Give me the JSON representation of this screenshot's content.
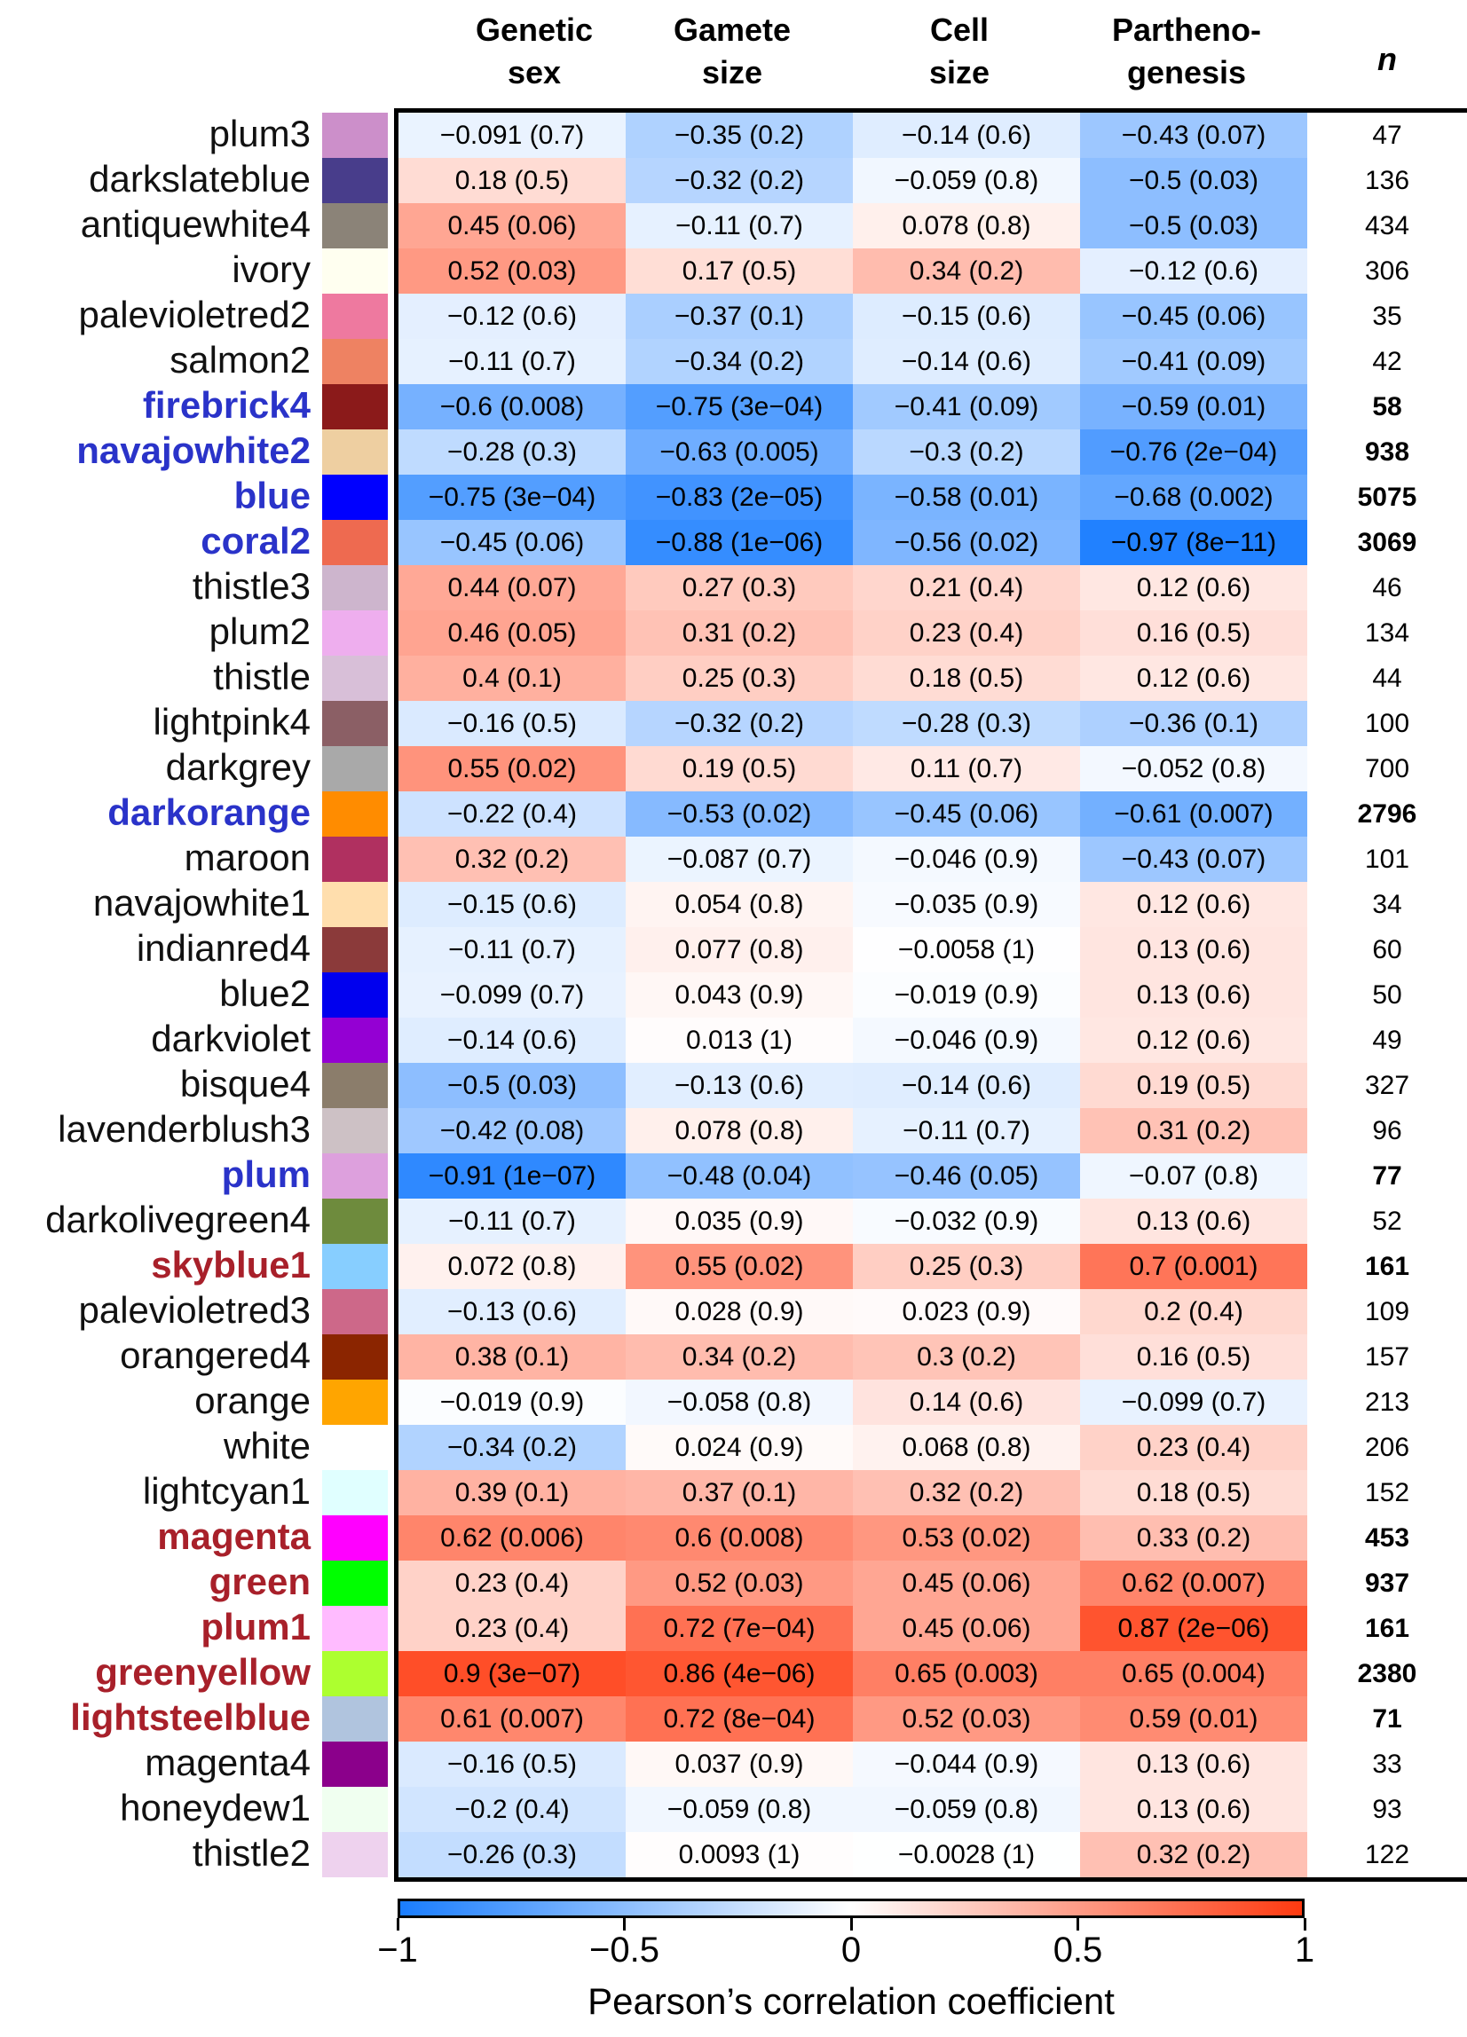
{
  "chart_data": {
    "type": "heatmap",
    "columns": [
      {
        "line1": "Genetic",
        "line2": "sex"
      },
      {
        "line1": "Gamete",
        "line2": "size"
      },
      {
        "line1": "Cell",
        "line2": "size"
      },
      {
        "line1": "Partheno-",
        "line2": "genesis"
      }
    ],
    "n_header": "n",
    "value_range": [
      -1,
      1
    ],
    "colorbar": {
      "title": "Pearson’s correlation coefficient",
      "ticks": [
        -1,
        -0.5,
        0,
        0.5,
        1
      ],
      "tick_labels": [
        "−1",
        "−0.5",
        "0",
        "0.5",
        "1"
      ],
      "low_color": "#1a7dff",
      "mid_color": "#ffffff",
      "high_color": "#ff3a10"
    },
    "label_colors": {
      "black": "#111111",
      "blue": "#2a33c9",
      "red": "#a8202a"
    },
    "rows": [
      {
        "module": "plum3",
        "swatch": "#cc8fca",
        "label_color": "black",
        "n": "47",
        "values": [
          {
            "r": -0.091,
            "t": "−0.091  (0.7)"
          },
          {
            "r": -0.35,
            "t": "−0.35  (0.2)"
          },
          {
            "r": -0.14,
            "t": "−0.14  (0.6)"
          },
          {
            "r": -0.43,
            "t": "−0.43  (0.07)"
          }
        ]
      },
      {
        "module": "darkslateblue",
        "swatch": "#483d8b",
        "label_color": "black",
        "n": "136",
        "values": [
          {
            "r": 0.18,
            "t": "0.18  (0.5)"
          },
          {
            "r": -0.32,
            "t": "−0.32  (0.2)"
          },
          {
            "r": -0.059,
            "t": "−0.059  (0.8)"
          },
          {
            "r": -0.5,
            "t": "−0.5  (0.03)"
          }
        ]
      },
      {
        "module": "antiquewhite4",
        "swatch": "#8b8378",
        "label_color": "black",
        "n": "434",
        "values": [
          {
            "r": 0.45,
            "t": "0.45  (0.06)"
          },
          {
            "r": -0.11,
            "t": "−0.11  (0.7)"
          },
          {
            "r": 0.078,
            "t": "0.078  (0.8)"
          },
          {
            "r": -0.5,
            "t": "−0.5  (0.03)"
          }
        ]
      },
      {
        "module": "ivory",
        "swatch": "#fffff0",
        "label_color": "black",
        "n": "306",
        "values": [
          {
            "r": 0.52,
            "t": "0.52  (0.03)"
          },
          {
            "r": 0.17,
            "t": "0.17  (0.5)"
          },
          {
            "r": 0.34,
            "t": "0.34  (0.2)"
          },
          {
            "r": -0.12,
            "t": "−0.12  (0.6)"
          }
        ]
      },
      {
        "module": "palevioletred2",
        "swatch": "#ee799f",
        "label_color": "black",
        "n": "35",
        "values": [
          {
            "r": -0.12,
            "t": "−0.12  (0.6)"
          },
          {
            "r": -0.37,
            "t": "−0.37  (0.1)"
          },
          {
            "r": -0.15,
            "t": "−0.15  (0.6)"
          },
          {
            "r": -0.45,
            "t": "−0.45  (0.06)"
          }
        ]
      },
      {
        "module": "salmon2",
        "swatch": "#ee8262",
        "label_color": "black",
        "n": "42",
        "values": [
          {
            "r": -0.11,
            "t": "−0.11  (0.7)"
          },
          {
            "r": -0.34,
            "t": "−0.34  (0.2)"
          },
          {
            "r": -0.14,
            "t": "−0.14  (0.6)"
          },
          {
            "r": -0.41,
            "t": "−0.41  (0.09)"
          }
        ]
      },
      {
        "module": "firebrick4",
        "swatch": "#8b1a1a",
        "label_color": "blue",
        "n": "58",
        "values": [
          {
            "r": -0.6,
            "t": "−0.6  (0.008)"
          },
          {
            "r": -0.75,
            "t": "−0.75  (3e−04)"
          },
          {
            "r": -0.41,
            "t": "−0.41  (0.09)"
          },
          {
            "r": -0.59,
            "t": "−0.59  (0.01)"
          }
        ]
      },
      {
        "module": "navajowhite2",
        "swatch": "#eecfa1",
        "label_color": "blue",
        "n": "938",
        "values": [
          {
            "r": -0.28,
            "t": "−0.28  (0.3)"
          },
          {
            "r": -0.63,
            "t": "−0.63  (0.005)"
          },
          {
            "r": -0.3,
            "t": "−0.3  (0.2)"
          },
          {
            "r": -0.76,
            "t": "−0.76  (2e−04)"
          }
        ]
      },
      {
        "module": "blue",
        "swatch": "#0000ff",
        "label_color": "blue",
        "n": "5075",
        "values": [
          {
            "r": -0.75,
            "t": "−0.75  (3e−04)"
          },
          {
            "r": -0.83,
            "t": "−0.83  (2e−05)"
          },
          {
            "r": -0.58,
            "t": "−0.58  (0.01)"
          },
          {
            "r": -0.68,
            "t": "−0.68  (0.002)"
          }
        ]
      },
      {
        "module": "coral2",
        "swatch": "#ee6a50",
        "label_color": "blue",
        "n": "3069",
        "values": [
          {
            "r": -0.45,
            "t": "−0.45  (0.06)"
          },
          {
            "r": -0.88,
            "t": "−0.88  (1e−06)"
          },
          {
            "r": -0.56,
            "t": "−0.56  (0.02)"
          },
          {
            "r": -0.97,
            "t": "−0.97  (8e−11)"
          }
        ]
      },
      {
        "module": "thistle3",
        "swatch": "#cdb5cd",
        "label_color": "black",
        "n": "46",
        "values": [
          {
            "r": 0.44,
            "t": "0.44  (0.07)"
          },
          {
            "r": 0.27,
            "t": "0.27  (0.3)"
          },
          {
            "r": 0.21,
            "t": "0.21  (0.4)"
          },
          {
            "r": 0.12,
            "t": "0.12  (0.6)"
          }
        ]
      },
      {
        "module": "plum2",
        "swatch": "#eeaeee",
        "label_color": "black",
        "n": "134",
        "values": [
          {
            "r": 0.46,
            "t": "0.46  (0.05)"
          },
          {
            "r": 0.31,
            "t": "0.31  (0.2)"
          },
          {
            "r": 0.23,
            "t": "0.23  (0.4)"
          },
          {
            "r": 0.16,
            "t": "0.16  (0.5)"
          }
        ]
      },
      {
        "module": "thistle",
        "swatch": "#d8bfd8",
        "label_color": "black",
        "n": "44",
        "values": [
          {
            "r": 0.4,
            "t": "0.4  (0.1)"
          },
          {
            "r": 0.25,
            "t": "0.25  (0.3)"
          },
          {
            "r": 0.18,
            "t": "0.18  (0.5)"
          },
          {
            "r": 0.12,
            "t": "0.12  (0.6)"
          }
        ]
      },
      {
        "module": "lightpink4",
        "swatch": "#8b5f65",
        "label_color": "black",
        "n": "100",
        "values": [
          {
            "r": -0.16,
            "t": "−0.16  (0.5)"
          },
          {
            "r": -0.32,
            "t": "−0.32  (0.2)"
          },
          {
            "r": -0.28,
            "t": "−0.28  (0.3)"
          },
          {
            "r": -0.36,
            "t": "−0.36  (0.1)"
          }
        ]
      },
      {
        "module": "darkgrey",
        "swatch": "#a9a9a9",
        "label_color": "black",
        "n": "700",
        "values": [
          {
            "r": 0.55,
            "t": "0.55  (0.02)"
          },
          {
            "r": 0.19,
            "t": "0.19  (0.5)"
          },
          {
            "r": 0.11,
            "t": "0.11  (0.7)"
          },
          {
            "r": -0.052,
            "t": "−0.052  (0.8)"
          }
        ]
      },
      {
        "module": "darkorange",
        "swatch": "#ff8c00",
        "label_color": "blue",
        "n": "2796",
        "values": [
          {
            "r": -0.22,
            "t": "−0.22  (0.4)"
          },
          {
            "r": -0.53,
            "t": "−0.53  (0.02)"
          },
          {
            "r": -0.45,
            "t": "−0.45  (0.06)"
          },
          {
            "r": -0.61,
            "t": "−0.61  (0.007)"
          }
        ]
      },
      {
        "module": "maroon",
        "swatch": "#b03060",
        "label_color": "black",
        "n": "101",
        "values": [
          {
            "r": 0.32,
            "t": "0.32  (0.2)"
          },
          {
            "r": -0.087,
            "t": "−0.087  (0.7)"
          },
          {
            "r": -0.046,
            "t": "−0.046  (0.9)"
          },
          {
            "r": -0.43,
            "t": "−0.43  (0.07)"
          }
        ]
      },
      {
        "module": "navajowhite1",
        "swatch": "#ffdead",
        "label_color": "black",
        "n": "34",
        "values": [
          {
            "r": -0.15,
            "t": "−0.15  (0.6)"
          },
          {
            "r": 0.054,
            "t": "0.054  (0.8)"
          },
          {
            "r": -0.035,
            "t": "−0.035  (0.9)"
          },
          {
            "r": 0.12,
            "t": "0.12  (0.6)"
          }
        ]
      },
      {
        "module": "indianred4",
        "swatch": "#8b3a3a",
        "label_color": "black",
        "n": "60",
        "values": [
          {
            "r": -0.11,
            "t": "−0.11  (0.7)"
          },
          {
            "r": 0.077,
            "t": "0.077  (0.8)"
          },
          {
            "r": -0.0058,
            "t": "−0.0058  (1)"
          },
          {
            "r": 0.13,
            "t": "0.13  (0.6)"
          }
        ]
      },
      {
        "module": "blue2",
        "swatch": "#0000ee",
        "label_color": "black",
        "n": "50",
        "values": [
          {
            "r": -0.099,
            "t": "−0.099  (0.7)"
          },
          {
            "r": 0.043,
            "t": "0.043  (0.9)"
          },
          {
            "r": -0.019,
            "t": "−0.019  (0.9)"
          },
          {
            "r": 0.13,
            "t": "0.13  (0.6)"
          }
        ]
      },
      {
        "module": "darkviolet",
        "swatch": "#9400d3",
        "label_color": "black",
        "n": "49",
        "values": [
          {
            "r": -0.14,
            "t": "−0.14  (0.6)"
          },
          {
            "r": 0.013,
            "t": "0.013  (1)"
          },
          {
            "r": -0.046,
            "t": "−0.046  (0.9)"
          },
          {
            "r": 0.12,
            "t": "0.12  (0.6)"
          }
        ]
      },
      {
        "module": "bisque4",
        "swatch": "#8b7d6b",
        "label_color": "black",
        "n": "327",
        "values": [
          {
            "r": -0.5,
            "t": "−0.5  (0.03)"
          },
          {
            "r": -0.13,
            "t": "−0.13  (0.6)"
          },
          {
            "r": -0.14,
            "t": "−0.14  (0.6)"
          },
          {
            "r": 0.19,
            "t": "0.19  (0.5)"
          }
        ]
      },
      {
        "module": "lavenderblush3",
        "swatch": "#cdc1c5",
        "label_color": "black",
        "n": "96",
        "values": [
          {
            "r": -0.42,
            "t": "−0.42  (0.08)"
          },
          {
            "r": 0.078,
            "t": "0.078  (0.8)"
          },
          {
            "r": -0.11,
            "t": "−0.11  (0.7)"
          },
          {
            "r": 0.31,
            "t": "0.31  (0.2)"
          }
        ]
      },
      {
        "module": "plum",
        "swatch": "#dda0dd",
        "label_color": "blue",
        "n": "77",
        "values": [
          {
            "r": -0.91,
            "t": "−0.91  (1e−07)"
          },
          {
            "r": -0.48,
            "t": "−0.48  (0.04)"
          },
          {
            "r": -0.46,
            "t": "−0.46  (0.05)"
          },
          {
            "r": -0.07,
            "t": "−0.07  (0.8)"
          }
        ]
      },
      {
        "module": "darkolivegreen4",
        "swatch": "#6e8b3d",
        "label_color": "black",
        "n": "52",
        "values": [
          {
            "r": -0.11,
            "t": "−0.11  (0.7)"
          },
          {
            "r": 0.035,
            "t": "0.035  (0.9)"
          },
          {
            "r": -0.032,
            "t": "−0.032  (0.9)"
          },
          {
            "r": 0.13,
            "t": "0.13  (0.6)"
          }
        ]
      },
      {
        "module": "skyblue1",
        "swatch": "#87ceff",
        "label_color": "red",
        "n": "161",
        "values": [
          {
            "r": 0.072,
            "t": "0.072  (0.8)"
          },
          {
            "r": 0.55,
            "t": "0.55  (0.02)"
          },
          {
            "r": 0.25,
            "t": "0.25  (0.3)"
          },
          {
            "r": 0.7,
            "t": "0.7  (0.001)"
          }
        ]
      },
      {
        "module": "palevioletred3",
        "swatch": "#cd6889",
        "label_color": "black",
        "n": "109",
        "values": [
          {
            "r": -0.13,
            "t": "−0.13  (0.6)"
          },
          {
            "r": 0.028,
            "t": "0.028  (0.9)"
          },
          {
            "r": 0.023,
            "t": "0.023  (0.9)"
          },
          {
            "r": 0.2,
            "t": "0.2  (0.4)"
          }
        ]
      },
      {
        "module": "orangered4",
        "swatch": "#8b2500",
        "label_color": "black",
        "n": "157",
        "values": [
          {
            "r": 0.38,
            "t": "0.38  (0.1)"
          },
          {
            "r": 0.34,
            "t": "0.34  (0.2)"
          },
          {
            "r": 0.3,
            "t": "0.3  (0.2)"
          },
          {
            "r": 0.16,
            "t": "0.16  (0.5)"
          }
        ]
      },
      {
        "module": "orange",
        "swatch": "#ffa500",
        "label_color": "black",
        "n": "213",
        "values": [
          {
            "r": -0.019,
            "t": "−0.019  (0.9)"
          },
          {
            "r": -0.058,
            "t": "−0.058  (0.8)"
          },
          {
            "r": 0.14,
            "t": "0.14  (0.6)"
          },
          {
            "r": -0.099,
            "t": "−0.099  (0.7)"
          }
        ]
      },
      {
        "module": "white",
        "swatch": "#ffffff",
        "label_color": "black",
        "n": "206",
        "values": [
          {
            "r": -0.34,
            "t": "−0.34  (0.2)"
          },
          {
            "r": 0.024,
            "t": "0.024  (0.9)"
          },
          {
            "r": 0.068,
            "t": "0.068  (0.8)"
          },
          {
            "r": 0.23,
            "t": "0.23  (0.4)"
          }
        ]
      },
      {
        "module": "lightcyan1",
        "swatch": "#e0ffff",
        "label_color": "black",
        "n": "152",
        "values": [
          {
            "r": 0.39,
            "t": "0.39  (0.1)"
          },
          {
            "r": 0.37,
            "t": "0.37  (0.1)"
          },
          {
            "r": 0.32,
            "t": "0.32  (0.2)"
          },
          {
            "r": 0.18,
            "t": "0.18  (0.5)"
          }
        ]
      },
      {
        "module": "magenta",
        "swatch": "#ff00ff",
        "label_color": "red",
        "n": "453",
        "values": [
          {
            "r": 0.62,
            "t": "0.62  (0.006)"
          },
          {
            "r": 0.6,
            "t": "0.6  (0.008)"
          },
          {
            "r": 0.53,
            "t": "0.53  (0.02)"
          },
          {
            "r": 0.33,
            "t": "0.33  (0.2)"
          }
        ]
      },
      {
        "module": "green",
        "swatch": "#00ff00",
        "label_color": "red",
        "n": "937",
        "values": [
          {
            "r": 0.23,
            "t": "0.23  (0.4)"
          },
          {
            "r": 0.52,
            "t": "0.52  (0.03)"
          },
          {
            "r": 0.45,
            "t": "0.45  (0.06)"
          },
          {
            "r": 0.62,
            "t": "0.62  (0.007)"
          }
        ]
      },
      {
        "module": "plum1",
        "swatch": "#ffbbff",
        "label_color": "red",
        "n": "161",
        "values": [
          {
            "r": 0.23,
            "t": "0.23  (0.4)"
          },
          {
            "r": 0.72,
            "t": "0.72  (7e−04)"
          },
          {
            "r": 0.45,
            "t": "0.45  (0.06)"
          },
          {
            "r": 0.87,
            "t": "0.87  (2e−06)"
          }
        ]
      },
      {
        "module": "greenyellow",
        "swatch": "#adff2f",
        "label_color": "red",
        "n": "2380",
        "values": [
          {
            "r": 0.9,
            "t": "0.9  (3e−07)"
          },
          {
            "r": 0.86,
            "t": "0.86  (4e−06)"
          },
          {
            "r": 0.65,
            "t": "0.65  (0.003)"
          },
          {
            "r": 0.65,
            "t": "0.65  (0.004)"
          }
        ]
      },
      {
        "module": "lightsteelblue",
        "swatch": "#b0c4de",
        "label_color": "red",
        "n": "71",
        "values": [
          {
            "r": 0.61,
            "t": "0.61  (0.007)"
          },
          {
            "r": 0.72,
            "t": "0.72  (8e−04)"
          },
          {
            "r": 0.52,
            "t": "0.52  (0.03)"
          },
          {
            "r": 0.59,
            "t": "0.59  (0.01)"
          }
        ]
      },
      {
        "module": "magenta4",
        "swatch": "#8b008b",
        "label_color": "black",
        "n": "33",
        "values": [
          {
            "r": -0.16,
            "t": "−0.16  (0.5)"
          },
          {
            "r": 0.037,
            "t": "0.037  (0.9)"
          },
          {
            "r": -0.044,
            "t": "−0.044  (0.9)"
          },
          {
            "r": 0.13,
            "t": "0.13  (0.6)"
          }
        ]
      },
      {
        "module": "honeydew1",
        "swatch": "#f0fff0",
        "label_color": "black",
        "n": "93",
        "values": [
          {
            "r": -0.2,
            "t": "−0.2  (0.4)"
          },
          {
            "r": -0.059,
            "t": "−0.059  (0.8)"
          },
          {
            "r": -0.059,
            "t": "−0.059  (0.8)"
          },
          {
            "r": 0.13,
            "t": "0.13  (0.6)"
          }
        ]
      },
      {
        "module": "thistle2",
        "swatch": "#eed2ee",
        "label_color": "black",
        "n": "122",
        "values": [
          {
            "r": -0.26,
            "t": "−0.26  (0.3)"
          },
          {
            "r": 0.0093,
            "t": "0.0093  (1)"
          },
          {
            "r": -0.0028,
            "t": "−0.0028  (1)"
          },
          {
            "r": 0.32,
            "t": "0.32  (0.2)"
          }
        ]
      }
    ]
  }
}
